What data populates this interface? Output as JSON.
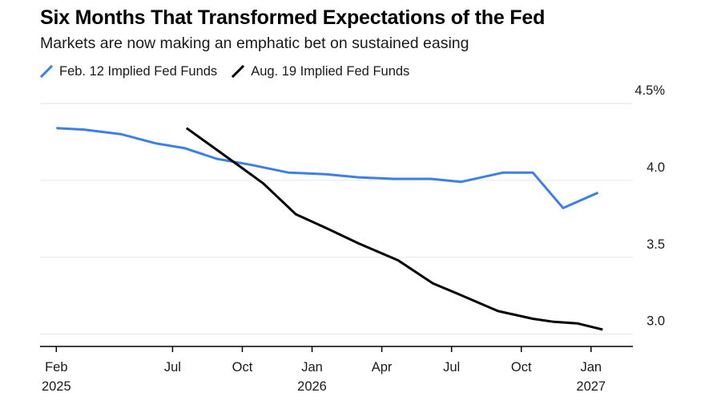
{
  "header": {
    "title": "Six Months That Transformed Expectations of the Fed",
    "subtitle": "Markets are now making an emphatic bet on sustained easing"
  },
  "colors": {
    "feb_series": "#3d7fe6",
    "aug_series": "#000000",
    "grid": "#e6e6e6",
    "axis": "#000000"
  },
  "chart_data": {
    "type": "line",
    "title": "Six Months That Transformed Expectations of the Fed",
    "subtitle": "Markets are now making an emphatic bet on sustained easing",
    "xlabel": "",
    "ylabel": "",
    "x_unit": "months since Feb 2025",
    "xlim": [
      -0.7,
      24.8
    ],
    "ylim": [
      2.92,
      4.5
    ],
    "y_ticks": [
      {
        "value": 4.5,
        "label": "4.5%"
      },
      {
        "value": 4.0,
        "label": "4.0"
      },
      {
        "value": 3.5,
        "label": "3.5"
      },
      {
        "value": 3.0,
        "label": "3.0"
      }
    ],
    "x_ticks": [
      {
        "value": 0,
        "label": "Feb",
        "year": "2025"
      },
      {
        "value": 5,
        "label": "Jul",
        "year": ""
      },
      {
        "value": 8,
        "label": "Oct",
        "year": ""
      },
      {
        "value": 11,
        "label": "Jan",
        "year": "2026"
      },
      {
        "value": 14,
        "label": "Apr",
        "year": ""
      },
      {
        "value": 17,
        "label": "Jul",
        "year": ""
      },
      {
        "value": 20,
        "label": "Oct",
        "year": ""
      },
      {
        "value": 23,
        "label": "Jan",
        "year": "2027"
      }
    ],
    "legend_position": "top-left",
    "series": [
      {
        "name": "Feb. 12 Implied Fed Funds",
        "color": "#3d7fe6",
        "x": [
          0,
          1.2,
          2.8,
          4.3,
          5.5,
          6.9,
          8.4,
          10.0,
          11.6,
          13.0,
          14.5,
          16.1,
          17.4,
          19.2,
          20.5,
          21.8,
          23.3
        ],
        "values": [
          4.34,
          4.33,
          4.3,
          4.24,
          4.21,
          4.14,
          4.1,
          4.05,
          4.04,
          4.02,
          4.01,
          4.01,
          3.99,
          4.05,
          4.05,
          3.82,
          3.92
        ]
      },
      {
        "name": "Aug. 19 Implied Fed Funds",
        "color": "#000000",
        "x": [
          5.6,
          7.9,
          8.9,
          10.3,
          11.6,
          13.0,
          14.7,
          16.2,
          17.3,
          19.0,
          20.5,
          21.4,
          22.4,
          23.5
        ],
        "values": [
          4.34,
          4.09,
          3.98,
          3.78,
          3.69,
          3.59,
          3.48,
          3.33,
          3.26,
          3.15,
          3.1,
          3.08,
          3.07,
          3.03
        ]
      }
    ]
  }
}
